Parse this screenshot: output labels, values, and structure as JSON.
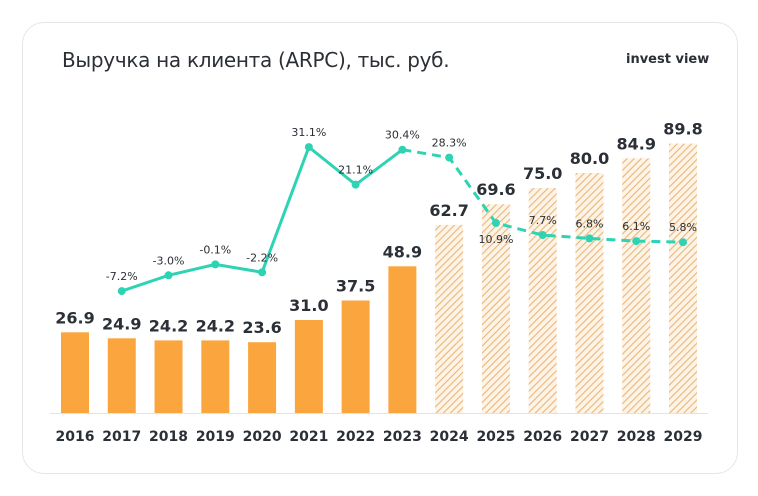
{
  "title": "Выручка на клиента (ARPC), тыс. руб.",
  "logo": "invest view",
  "chart_data": {
    "type": "bar",
    "title": "Выручка на клиента (ARPC), тыс. руб.",
    "categories": [
      "2016",
      "2017",
      "2018",
      "2019",
      "2020",
      "2021",
      "2022",
      "2023",
      "2024",
      "2025",
      "2026",
      "2027",
      "2028",
      "2029"
    ],
    "series": [
      {
        "type": "bar",
        "values": [
          26.9,
          24.9,
          24.2,
          24.2,
          23.6,
          31.0,
          37.5,
          48.9,
          62.7,
          69.6,
          75.0,
          80.0,
          84.9,
          89.8
        ],
        "labels": [
          "26.9",
          "24.9",
          "24.2",
          "24.2",
          "23.6",
          "31.0",
          "37.5",
          "48.9",
          "62.7",
          "69.6",
          "75.0",
          "80.0",
          "84.9",
          "89.8"
        ],
        "forecast_from": "2024"
      },
      {
        "type": "line",
        "values": [
          null,
          -7.2,
          -3.0,
          -0.1,
          -2.2,
          31.1,
          21.1,
          30.4,
          28.3,
          10.9,
          7.7,
          6.8,
          6.1,
          5.8
        ],
        "labels": [
          "",
          "-7.2%",
          "-3.0%",
          "-0.1%",
          "-2.2%",
          "31.1%",
          "21.1%",
          "30.4%",
          "28.3%",
          "10.9%",
          "7.7%",
          "6.8%",
          "6.1%",
          "5.8%"
        ],
        "forecast_from": "2023"
      }
    ],
    "colors": {
      "bar": "#fba53e",
      "forecast_hatch": "#e8b77a",
      "line": "#2ed3b4",
      "text": "#2b2f36"
    }
  }
}
